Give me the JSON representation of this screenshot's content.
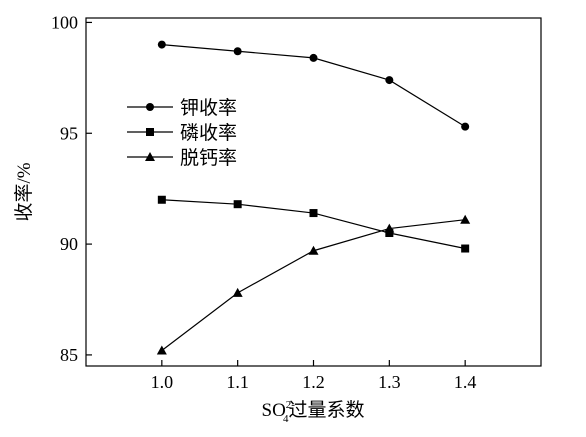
{
  "chart_data": {
    "type": "line",
    "title": "",
    "xlabel": {
      "prefix": "SO",
      "superscript": "2-",
      "subscript": "4",
      "suffix": "过量系数"
    },
    "ylabel": "收率/%",
    "x": [
      1.0,
      1.1,
      1.2,
      1.3,
      1.4
    ],
    "x_tick_labels": [
      "1.0",
      "1.1",
      "1.2",
      "1.3",
      "1.4"
    ],
    "xlim": [
      0.9,
      1.5
    ],
    "y_ticks": [
      85,
      90,
      95,
      100
    ],
    "y_tick_labels": [
      "85",
      "90",
      "95",
      "100"
    ],
    "ylim": [
      84.5,
      100.2
    ],
    "grid": false,
    "legend_position": "upper-left",
    "series": [
      {
        "name": "钾收率",
        "marker": "circle",
        "values": [
          99.0,
          98.7,
          98.4,
          97.4,
          95.3
        ]
      },
      {
        "name": "磷收率",
        "marker": "square",
        "values": [
          92.0,
          91.8,
          91.4,
          90.5,
          89.8
        ]
      },
      {
        "name": "脱钙率",
        "marker": "triangle",
        "values": [
          85.2,
          87.8,
          89.7,
          90.7,
          91.1
        ]
      }
    ],
    "colors": {
      "line": "#000000",
      "marker": "#000000"
    }
  }
}
